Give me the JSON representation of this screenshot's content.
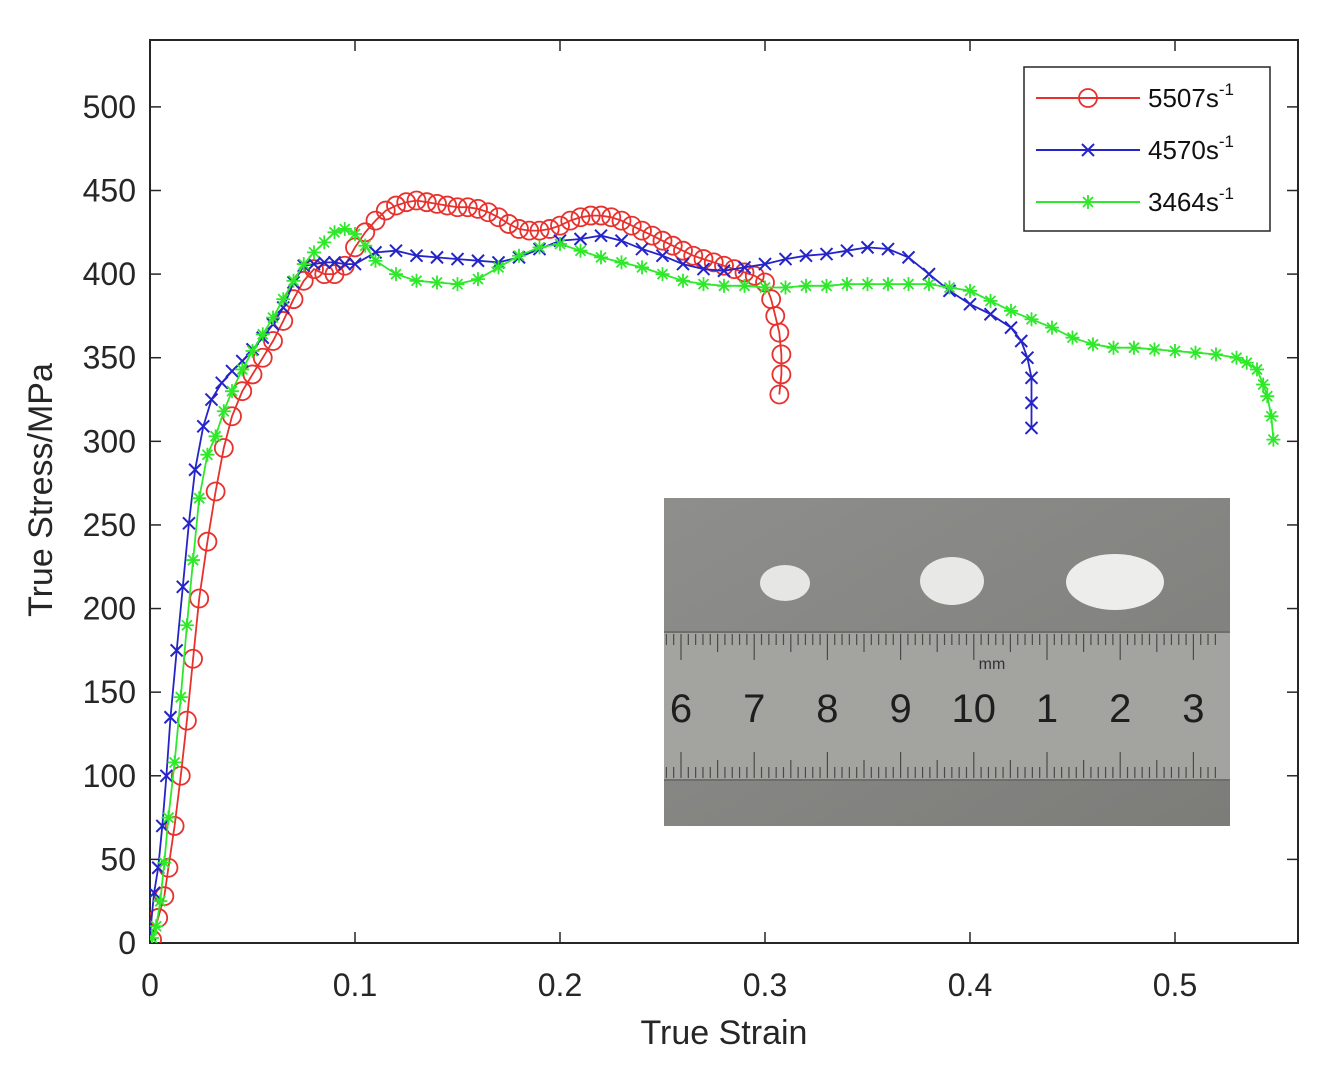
{
  "chart_data": {
    "type": "line",
    "xlabel": "True Strain",
    "ylabel": "True Stress/MPa",
    "xlim": [
      0,
      0.56
    ],
    "ylim": [
      0,
      540
    ],
    "xticks": [
      0,
      0.1,
      0.2,
      0.3,
      0.4,
      0.5
    ],
    "xtick_labels": [
      "0",
      "0.1",
      "0.2",
      "0.3",
      "0.4",
      "0.5"
    ],
    "yticks": [
      0,
      50,
      100,
      150,
      200,
      250,
      300,
      350,
      400,
      450,
      500
    ],
    "ytick_labels": [
      "0",
      "50",
      "100",
      "150",
      "200",
      "250",
      "300",
      "350",
      "400",
      "450",
      "500"
    ],
    "grid": false,
    "legend_position": "top-right",
    "series": [
      {
        "name_base": "5507",
        "name_unit": "s",
        "name_exp": "-1",
        "color": "#e8302c",
        "marker": "circle",
        "x": [
          0.001,
          0.004,
          0.007,
          0.009,
          0.012,
          0.015,
          0.018,
          0.021,
          0.024,
          0.028,
          0.032,
          0.036,
          0.04,
          0.045,
          0.05,
          0.055,
          0.06,
          0.065,
          0.07,
          0.075,
          0.08,
          0.085,
          0.09,
          0.095,
          0.1,
          0.105,
          0.11,
          0.115,
          0.12,
          0.125,
          0.13,
          0.135,
          0.14,
          0.145,
          0.15,
          0.155,
          0.16,
          0.165,
          0.17,
          0.175,
          0.18,
          0.185,
          0.19,
          0.195,
          0.2,
          0.205,
          0.21,
          0.215,
          0.22,
          0.225,
          0.23,
          0.235,
          0.24,
          0.245,
          0.25,
          0.255,
          0.26,
          0.265,
          0.27,
          0.275,
          0.28,
          0.285,
          0.29,
          0.295,
          0.3,
          0.303,
          0.305,
          0.307,
          0.308,
          0.308,
          0.307
        ],
        "y": [
          2,
          15,
          28,
          45,
          70,
          100,
          133,
          170,
          206,
          240,
          270,
          296,
          315,
          330,
          340,
          350,
          360,
          372,
          385,
          396,
          403,
          400,
          400,
          405,
          416,
          425,
          432,
          438,
          441,
          443,
          444,
          443,
          442,
          441,
          440,
          440,
          439,
          437,
          434,
          430,
          427,
          426,
          426,
          427,
          429,
          432,
          434,
          435,
          435,
          434,
          432,
          429,
          426,
          423,
          420,
          417,
          414,
          411,
          409,
          407,
          405,
          403,
          401,
          399,
          395,
          385,
          375,
          365,
          352,
          340,
          328
        ]
      },
      {
        "name_base": "4570",
        "name_unit": "s",
        "name_exp": "-1",
        "color": "#2424c8",
        "marker": "x",
        "x": [
          0.0,
          0.002,
          0.004,
          0.006,
          0.008,
          0.01,
          0.013,
          0.016,
          0.019,
          0.022,
          0.026,
          0.03,
          0.035,
          0.04,
          0.045,
          0.05,
          0.055,
          0.06,
          0.065,
          0.07,
          0.075,
          0.08,
          0.085,
          0.09,
          0.095,
          0.1,
          0.11,
          0.12,
          0.13,
          0.14,
          0.15,
          0.16,
          0.17,
          0.18,
          0.19,
          0.2,
          0.21,
          0.22,
          0.23,
          0.24,
          0.25,
          0.26,
          0.27,
          0.28,
          0.29,
          0.3,
          0.31,
          0.32,
          0.33,
          0.34,
          0.35,
          0.36,
          0.37,
          0.38,
          0.39,
          0.4,
          0.41,
          0.42,
          0.425,
          0.428,
          0.43,
          0.43,
          0.43
        ],
        "y": [
          5,
          30,
          45,
          70,
          100,
          135,
          175,
          213,
          251,
          283,
          309,
          325,
          335,
          342,
          348,
          355,
          362,
          370,
          380,
          395,
          405,
          406,
          407,
          407,
          406,
          406,
          413,
          414,
          411,
          410,
          409,
          408,
          407,
          410,
          415,
          420,
          421,
          423,
          420,
          415,
          411,
          406,
          403,
          402,
          404,
          406,
          409,
          411,
          412,
          414,
          416,
          415,
          410,
          400,
          390,
          382,
          376,
          368,
          360,
          350,
          338,
          323,
          308
        ]
      },
      {
        "name_base": "3464",
        "name_unit": "s",
        "name_exp": "-1",
        "color": "#2ee82a",
        "marker": "asterisk",
        "x": [
          0.001,
          0.003,
          0.005,
          0.007,
          0.009,
          0.012,
          0.015,
          0.018,
          0.021,
          0.024,
          0.028,
          0.032,
          0.036,
          0.04,
          0.045,
          0.05,
          0.055,
          0.06,
          0.065,
          0.07,
          0.075,
          0.08,
          0.085,
          0.09,
          0.095,
          0.1,
          0.105,
          0.11,
          0.12,
          0.13,
          0.14,
          0.15,
          0.16,
          0.17,
          0.18,
          0.19,
          0.2,
          0.21,
          0.22,
          0.23,
          0.24,
          0.25,
          0.26,
          0.27,
          0.28,
          0.29,
          0.3,
          0.31,
          0.32,
          0.33,
          0.34,
          0.35,
          0.36,
          0.37,
          0.38,
          0.39,
          0.4,
          0.41,
          0.42,
          0.43,
          0.44,
          0.45,
          0.46,
          0.47,
          0.48,
          0.49,
          0.5,
          0.51,
          0.52,
          0.53,
          0.535,
          0.54,
          0.543,
          0.545,
          0.547,
          0.548
        ],
        "y": [
          3,
          10,
          25,
          48,
          75,
          108,
          147,
          190,
          229,
          266,
          292,
          303,
          318,
          330,
          343,
          354,
          364,
          374,
          385,
          396,
          406,
          413,
          419,
          425,
          427,
          424,
          417,
          408,
          400,
          396,
          395,
          394,
          397,
          404,
          411,
          416,
          418,
          414,
          410,
          407,
          404,
          400,
          396,
          394,
          393,
          393,
          392,
          392,
          393,
          393,
          394,
          394,
          394,
          394,
          394,
          392,
          390,
          384,
          378,
          373,
          368,
          362,
          358,
          356,
          356,
          355,
          354,
          353,
          352,
          350,
          347,
          343,
          334,
          327,
          315,
          301
        ]
      }
    ]
  },
  "inset": {
    "ruler_numbers": [
      "6",
      "7",
      "8",
      "9",
      "10",
      "1",
      "2",
      "3"
    ],
    "ruler_unit": "mm"
  }
}
